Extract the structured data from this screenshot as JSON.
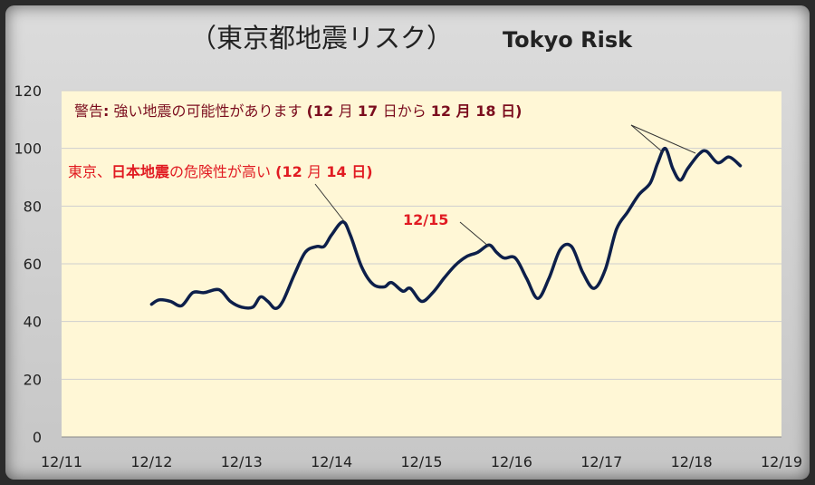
{
  "title": {
    "jp": "（東京都地震リスク）",
    "en": "Tokyo Risk"
  },
  "colors": {
    "plot_background": "#fff7d6",
    "line": "#0d1f4a",
    "annotation_dark_red": "#7b0d1e",
    "annotation_red": "#e11b22",
    "grid": "#cfcfcf"
  },
  "annotations": {
    "warning": {
      "prefix": "警告",
      "colon": ":",
      "text": " 強い地震の可能性があります ",
      "period_open": "(12 ",
      "m1": "月 ",
      "d1": "17 ",
      "mid": "日から ",
      "n2": "12 ",
      "m2": "月 ",
      "d2": "18 ",
      "end": "日)"
    },
    "tokyo": {
      "t1": "東京、",
      "t2": "日本地震",
      "t3": "の危険性が高い ",
      "t4": "(12 ",
      "t5": "月 ",
      "t6": "14 ",
      "t7": "日)"
    },
    "date_label": "12/15"
  },
  "chart_data": {
    "type": "line",
    "title": "（東京都地震リスク） Tokyo Risk",
    "xlabel": "",
    "ylabel": "",
    "x_ticks": [
      "12/11",
      "12/12",
      "12/13",
      "12/14",
      "12/15",
      "12/16",
      "12/17",
      "12/18",
      "12/19"
    ],
    "y_ticks": [
      "0",
      "20",
      "40",
      "60",
      "80",
      "100",
      "120"
    ],
    "ylim": [
      0,
      120
    ],
    "xlim": [
      "12/11",
      "12/19"
    ],
    "grid": "horizontal",
    "series": [
      {
        "points": [
          [
            "12/12 00:00",
            46
          ],
          [
            "12/12 02:00",
            47.5
          ],
          [
            "12/12 05:00",
            47
          ],
          [
            "12/12 08:00",
            45.5
          ],
          [
            "12/12 11:00",
            50
          ],
          [
            "12/12 14:00",
            50
          ],
          [
            "12/12 18:00",
            51
          ],
          [
            "12/12 21:00",
            47
          ],
          [
            "12/13 00:00",
            45
          ],
          [
            "12/13 03:00",
            45
          ],
          [
            "12/13 05:00",
            48.5
          ],
          [
            "12/13 07:00",
            47
          ],
          [
            "12/13 09:00",
            44.5
          ],
          [
            "12/13 11:00",
            47
          ],
          [
            "12/13 14:00",
            56
          ],
          [
            "12/13 17:00",
            64
          ],
          [
            "12/13 20:00",
            66
          ],
          [
            "12/13 22:00",
            66
          ],
          [
            "12/14 00:00",
            70
          ],
          [
            "12/14 03:00",
            74.5
          ],
          [
            "12/14 05:00",
            70
          ],
          [
            "12/14 08:00",
            59
          ],
          [
            "12/14 11:00",
            53
          ],
          [
            "12/14 14:00",
            52
          ],
          [
            "12/14 16:00",
            53.5
          ],
          [
            "12/14 19:00",
            50.5
          ],
          [
            "12/14 21:00",
            51.5
          ],
          [
            "12/15 00:00",
            47
          ],
          [
            "12/15 03:00",
            50
          ],
          [
            "12/15 06:00",
            55
          ],
          [
            "12/15 09:00",
            59.5
          ],
          [
            "12/15 12:00",
            62.5
          ],
          [
            "12/15 15:00",
            64
          ],
          [
            "12/15 18:00",
            66.5
          ],
          [
            "12/15 20:00",
            64
          ],
          [
            "12/15 22:00",
            62
          ],
          [
            "12/16 01:00",
            62
          ],
          [
            "12/16 04:00",
            55
          ],
          [
            "12/16 07:00",
            48
          ],
          [
            "12/16 10:00",
            55
          ],
          [
            "12/16 13:00",
            65
          ],
          [
            "12/16 16:00",
            66
          ],
          [
            "12/16 19:00",
            57
          ],
          [
            "12/16 22:00",
            51.5
          ],
          [
            "12/17 01:00",
            58
          ],
          [
            "12/17 04:00",
            72
          ],
          [
            "12/17 07:00",
            78
          ],
          [
            "12/17 10:00",
            84
          ],
          [
            "12/17 13:00",
            88
          ],
          [
            "12/17 15:00",
            95
          ],
          [
            "12/17 17:00",
            100
          ],
          [
            "12/17 19:00",
            93
          ],
          [
            "12/17 21:00",
            89
          ],
          [
            "12/17 23:00",
            93
          ],
          [
            "12/18 02:00",
            98
          ],
          [
            "12/18 04:00",
            99
          ],
          [
            "12/18 07:00",
            95
          ],
          [
            "12/18 10:00",
            97
          ],
          [
            "12/18 13:00",
            94
          ]
        ]
      }
    ]
  }
}
